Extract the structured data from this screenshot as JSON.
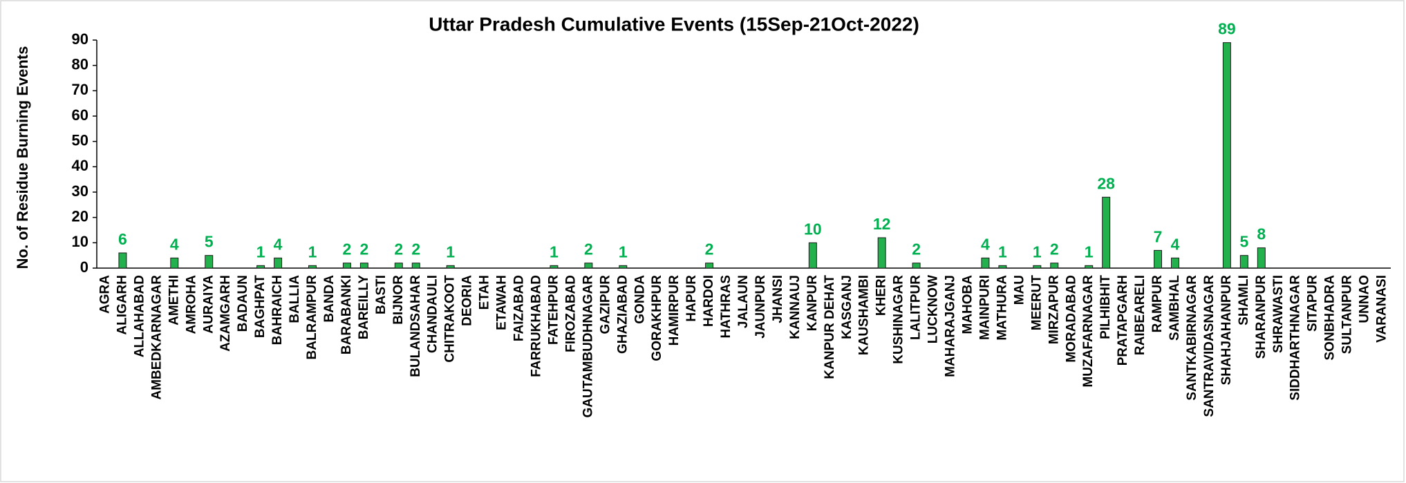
{
  "chart_data": {
    "type": "bar",
    "title": "Uttar Pradesh Cumulative Events (15Sep-21Oct-2022)",
    "y_label": "No. of Residue Burning Events",
    "categories": [
      "AGRA",
      "ALIGARH",
      "ALLAHABAD",
      "AMBEDKARNAGAR",
      "AMETHI",
      "AMROHA",
      "AURAIYA",
      "AZAMGARH",
      "BADAUN",
      "BAGHPAT",
      "BAHRAICH",
      "BALLIA",
      "BALRAMPUR",
      "BANDA",
      "BARABANKI",
      "BAREILLY",
      "BASTI",
      "BIJNOR",
      "BULANDSAHAR",
      "CHANDAULI",
      "CHITRAKOOT",
      "DEORIA",
      "ETAH",
      "ETAWAH",
      "FAIZABAD",
      "FARRUKHABAD",
      "FATEHPUR",
      "FIROZABAD",
      "GAUTAMBUDHNAGAR",
      "GAZIPUR",
      "GHAZIABAD",
      "GONDA",
      "GORAKHPUR",
      "HAMIRPUR",
      "HAPUR",
      "HARDOI",
      "HATHRAS",
      "JALAUN",
      "JAUNPUR",
      "JHANSI",
      "KANNAUJ",
      "KANPUR",
      "KANPUR DEHAT",
      "KASGANJ",
      "KAUSHAMBI",
      "KHERI",
      "KUSHINAGAR",
      "LALITPUR",
      "LUCKNOW",
      "MAHARAJGANJ",
      "MAHOBA",
      "MAINPURI",
      "MATHURA",
      "MAU",
      "MEERUT",
      "MIRZAPUR",
      "MORADABAD",
      "MUZAFARNAGAR",
      "PILHIBHIT",
      "PRATAPGARH",
      "RAIBEARELI",
      "RAMPUR",
      "SAMBHAL",
      "SANTKABIRNAGAR",
      "SANTRAVIDASNAGAR",
      "SHAHJAHANPUR",
      "SHAMLI",
      "SHARANPUR",
      "SHRAWASTI",
      "SIDDHARTHNAGAR",
      "SITAPUR",
      "SONBHADRA",
      "SULTANPUR",
      "UNNAO",
      "VARANASI"
    ],
    "values": [
      0,
      6,
      0,
      0,
      4,
      0,
      5,
      0,
      0,
      1,
      4,
      0,
      1,
      0,
      2,
      2,
      0,
      2,
      2,
      0,
      1,
      0,
      0,
      0,
      0,
      0,
      1,
      0,
      2,
      0,
      1,
      0,
      0,
      0,
      0,
      2,
      0,
      0,
      0,
      0,
      0,
      10,
      0,
      0,
      0,
      12,
      0,
      2,
      0,
      0,
      0,
      4,
      1,
      0,
      1,
      2,
      0,
      1,
      28,
      0,
      0,
      7,
      4,
      0,
      0,
      89,
      5,
      8,
      0,
      0,
      0,
      0,
      0,
      0,
      0
    ],
    "color": "#22b14c",
    "label_color": "#00b050",
    "ylim": [
      0,
      90
    ],
    "yticks": [
      0,
      10,
      20,
      30,
      40,
      50,
      60,
      70,
      80,
      90
    ],
    "grid": false
  }
}
